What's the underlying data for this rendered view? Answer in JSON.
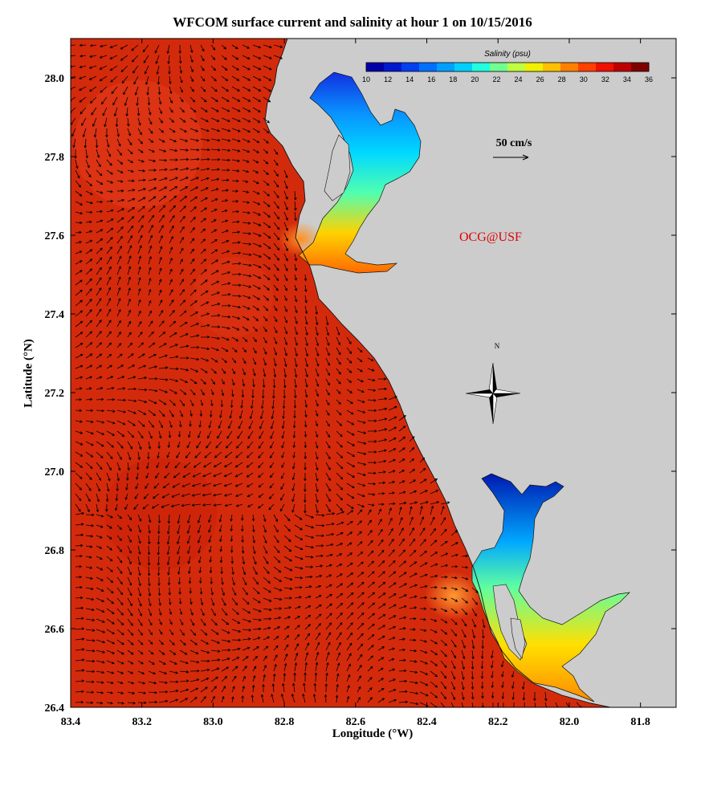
{
  "title": "WFCOM surface current and salinity at hour 1 on 10/15/2016",
  "xlabel": "Longitude (°W)",
  "ylabel": "Latitude (°N)",
  "colorbar": {
    "title": "Salinity (psu)",
    "ticks": [
      "10",
      "12",
      "14",
      "16",
      "18",
      "20",
      "22",
      "24",
      "26",
      "28",
      "30",
      "32",
      "34",
      "36"
    ],
    "colors": [
      "#0000a8",
      "#0018d0",
      "#0040f0",
      "#0070ff",
      "#00a0ff",
      "#00d0ff",
      "#20ffe0",
      "#70ff90",
      "#c0ff40",
      "#f0f000",
      "#ffc000",
      "#ff8000",
      "#ff4000",
      "#f01000",
      "#c00000",
      "#800000"
    ]
  },
  "scale_arrow_label": "50 cm/s",
  "credit": "OCG@USF",
  "north_label": "N",
  "colors": {
    "land": "#cccccc",
    "sea": "#d62408",
    "arrow": "#000000"
  },
  "chart_data": {
    "type": "heatmap",
    "x_tick_labels": [
      "83.4",
      "83.2",
      "83.0",
      "82.8",
      "82.6",
      "82.4",
      "82.2",
      "82.0",
      "81.8"
    ],
    "x_ticks": [
      83.4,
      83.2,
      83.0,
      82.8,
      82.6,
      82.4,
      82.2,
      82.0,
      81.8
    ],
    "y_tick_labels": [
      "28.0",
      "27.8",
      "27.6",
      "27.4",
      "27.2",
      "27.0",
      "26.8",
      "26.6",
      "26.4"
    ],
    "y_ticks": [
      28.0,
      27.8,
      27.6,
      27.4,
      27.2,
      27.0,
      26.8,
      26.6,
      26.4
    ],
    "xlim": [
      83.4,
      81.7
    ],
    "ylim": [
      26.4,
      28.1
    ],
    "value_range": [
      10,
      36
    ]
  }
}
